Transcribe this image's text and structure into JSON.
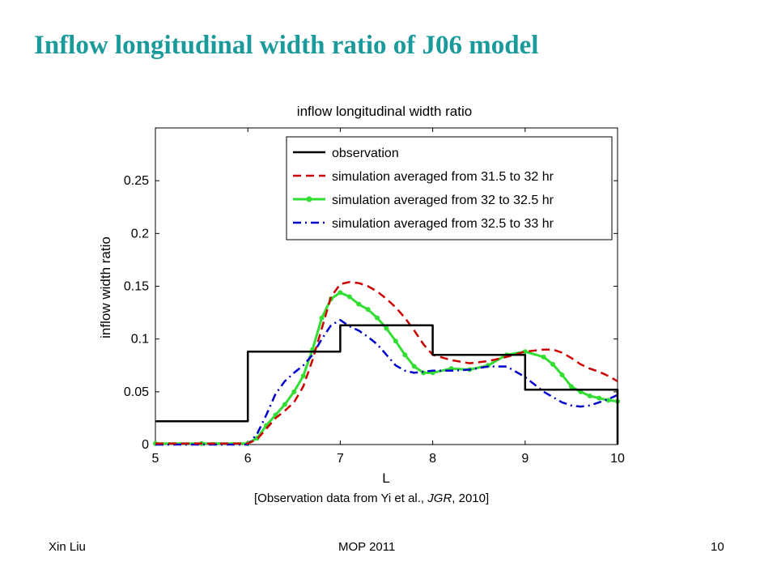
{
  "slide": {
    "title": "Inflow longitudinal width ratio of J06 model",
    "citation_prefix": "[Observation data from Yi et al., ",
    "citation_journal": "JGR",
    "citation_suffix": ", 2010]",
    "footer_left": "Xin Liu",
    "footer_center": "MOP 2011",
    "footer_right": "10"
  },
  "chart_data": {
    "type": "line",
    "title": "inflow longitudinal width ratio",
    "xlabel": "L",
    "ylabel": "inflow width ratio",
    "xlim": [
      5,
      10
    ],
    "ylim": [
      0,
      0.3
    ],
    "xticks": [
      5,
      6,
      7,
      8,
      9,
      10
    ],
    "yticks": [
      0,
      0.05,
      0.1,
      0.15,
      0.2,
      0.25
    ],
    "ytick_labels": [
      "0",
      "0.05",
      "0.1",
      "0.15",
      "0.2",
      "0.25"
    ],
    "grid": false,
    "legend_position": "top-right",
    "series": [
      {
        "name": "observation",
        "color": "#000000",
        "style": "solid",
        "x": [
          5,
          6,
          6,
          7,
          7,
          8,
          8,
          9,
          9,
          10,
          10
        ],
        "y": [
          0.022,
          0.022,
          0.088,
          0.088,
          0.113,
          0.113,
          0.085,
          0.085,
          0.052,
          0.052,
          0
        ]
      },
      {
        "name": "simulation averaged from 31.5 to 32 hr",
        "color": "#cc0000",
        "style": "dashed",
        "x": [
          5,
          5.5,
          6,
          6.1,
          6.2,
          6.3,
          6.4,
          6.5,
          6.6,
          6.7,
          6.8,
          6.9,
          7.0,
          7.1,
          7.2,
          7.3,
          7.4,
          7.5,
          7.6,
          7.7,
          7.8,
          7.9,
          8.0,
          8.2,
          8.4,
          8.6,
          8.8,
          9.0,
          9.2,
          9.3,
          9.4,
          9.5,
          9.6,
          9.7,
          9.8,
          9.9,
          10.0
        ],
        "y": [
          0.001,
          0.001,
          0.001,
          0.005,
          0.015,
          0.025,
          0.032,
          0.04,
          0.055,
          0.08,
          0.11,
          0.14,
          0.152,
          0.154,
          0.153,
          0.15,
          0.145,
          0.138,
          0.13,
          0.12,
          0.108,
          0.095,
          0.085,
          0.08,
          0.077,
          0.079,
          0.083,
          0.088,
          0.09,
          0.09,
          0.087,
          0.082,
          0.076,
          0.072,
          0.069,
          0.065,
          0.06
        ]
      },
      {
        "name": "simulation averaged from 32 to 32.5 hr",
        "color": "#33dd33",
        "style": "solid-marker",
        "x": [
          5,
          5.5,
          6,
          6.1,
          6.2,
          6.3,
          6.4,
          6.5,
          6.6,
          6.7,
          6.8,
          6.9,
          7.0,
          7.1,
          7.2,
          7.3,
          7.4,
          7.5,
          7.6,
          7.7,
          7.8,
          7.9,
          8.0,
          8.2,
          8.4,
          8.6,
          8.8,
          9.0,
          9.2,
          9.3,
          9.4,
          9.5,
          9.6,
          9.7,
          9.8,
          9.9,
          10.0
        ],
        "y": [
          0.001,
          0.001,
          0.001,
          0.006,
          0.018,
          0.028,
          0.038,
          0.05,
          0.065,
          0.09,
          0.12,
          0.138,
          0.144,
          0.14,
          0.133,
          0.128,
          0.12,
          0.11,
          0.098,
          0.085,
          0.074,
          0.068,
          0.068,
          0.072,
          0.071,
          0.075,
          0.085,
          0.088,
          0.083,
          0.076,
          0.066,
          0.055,
          0.05,
          0.046,
          0.044,
          0.042,
          0.041
        ]
      },
      {
        "name": "simulation averaged from 32.5 to 33 hr",
        "color": "#0000cc",
        "style": "dashdot",
        "x": [
          5,
          5.5,
          6,
          6.1,
          6.2,
          6.3,
          6.4,
          6.5,
          6.6,
          6.7,
          6.8,
          6.9,
          7.0,
          7.1,
          7.2,
          7.3,
          7.4,
          7.5,
          7.6,
          7.7,
          7.8,
          7.9,
          8.0,
          8.2,
          8.4,
          8.6,
          8.8,
          9.0,
          9.2,
          9.3,
          9.4,
          9.5,
          9.6,
          9.7,
          9.8,
          9.9,
          10.0
        ],
        "y": [
          0,
          0,
          0,
          0.01,
          0.028,
          0.048,
          0.06,
          0.068,
          0.075,
          0.085,
          0.1,
          0.113,
          0.118,
          0.112,
          0.108,
          0.102,
          0.095,
          0.085,
          0.075,
          0.07,
          0.068,
          0.069,
          0.07,
          0.07,
          0.071,
          0.074,
          0.074,
          0.064,
          0.05,
          0.045,
          0.04,
          0.037,
          0.036,
          0.037,
          0.04,
          0.043,
          0.047
        ]
      }
    ]
  }
}
